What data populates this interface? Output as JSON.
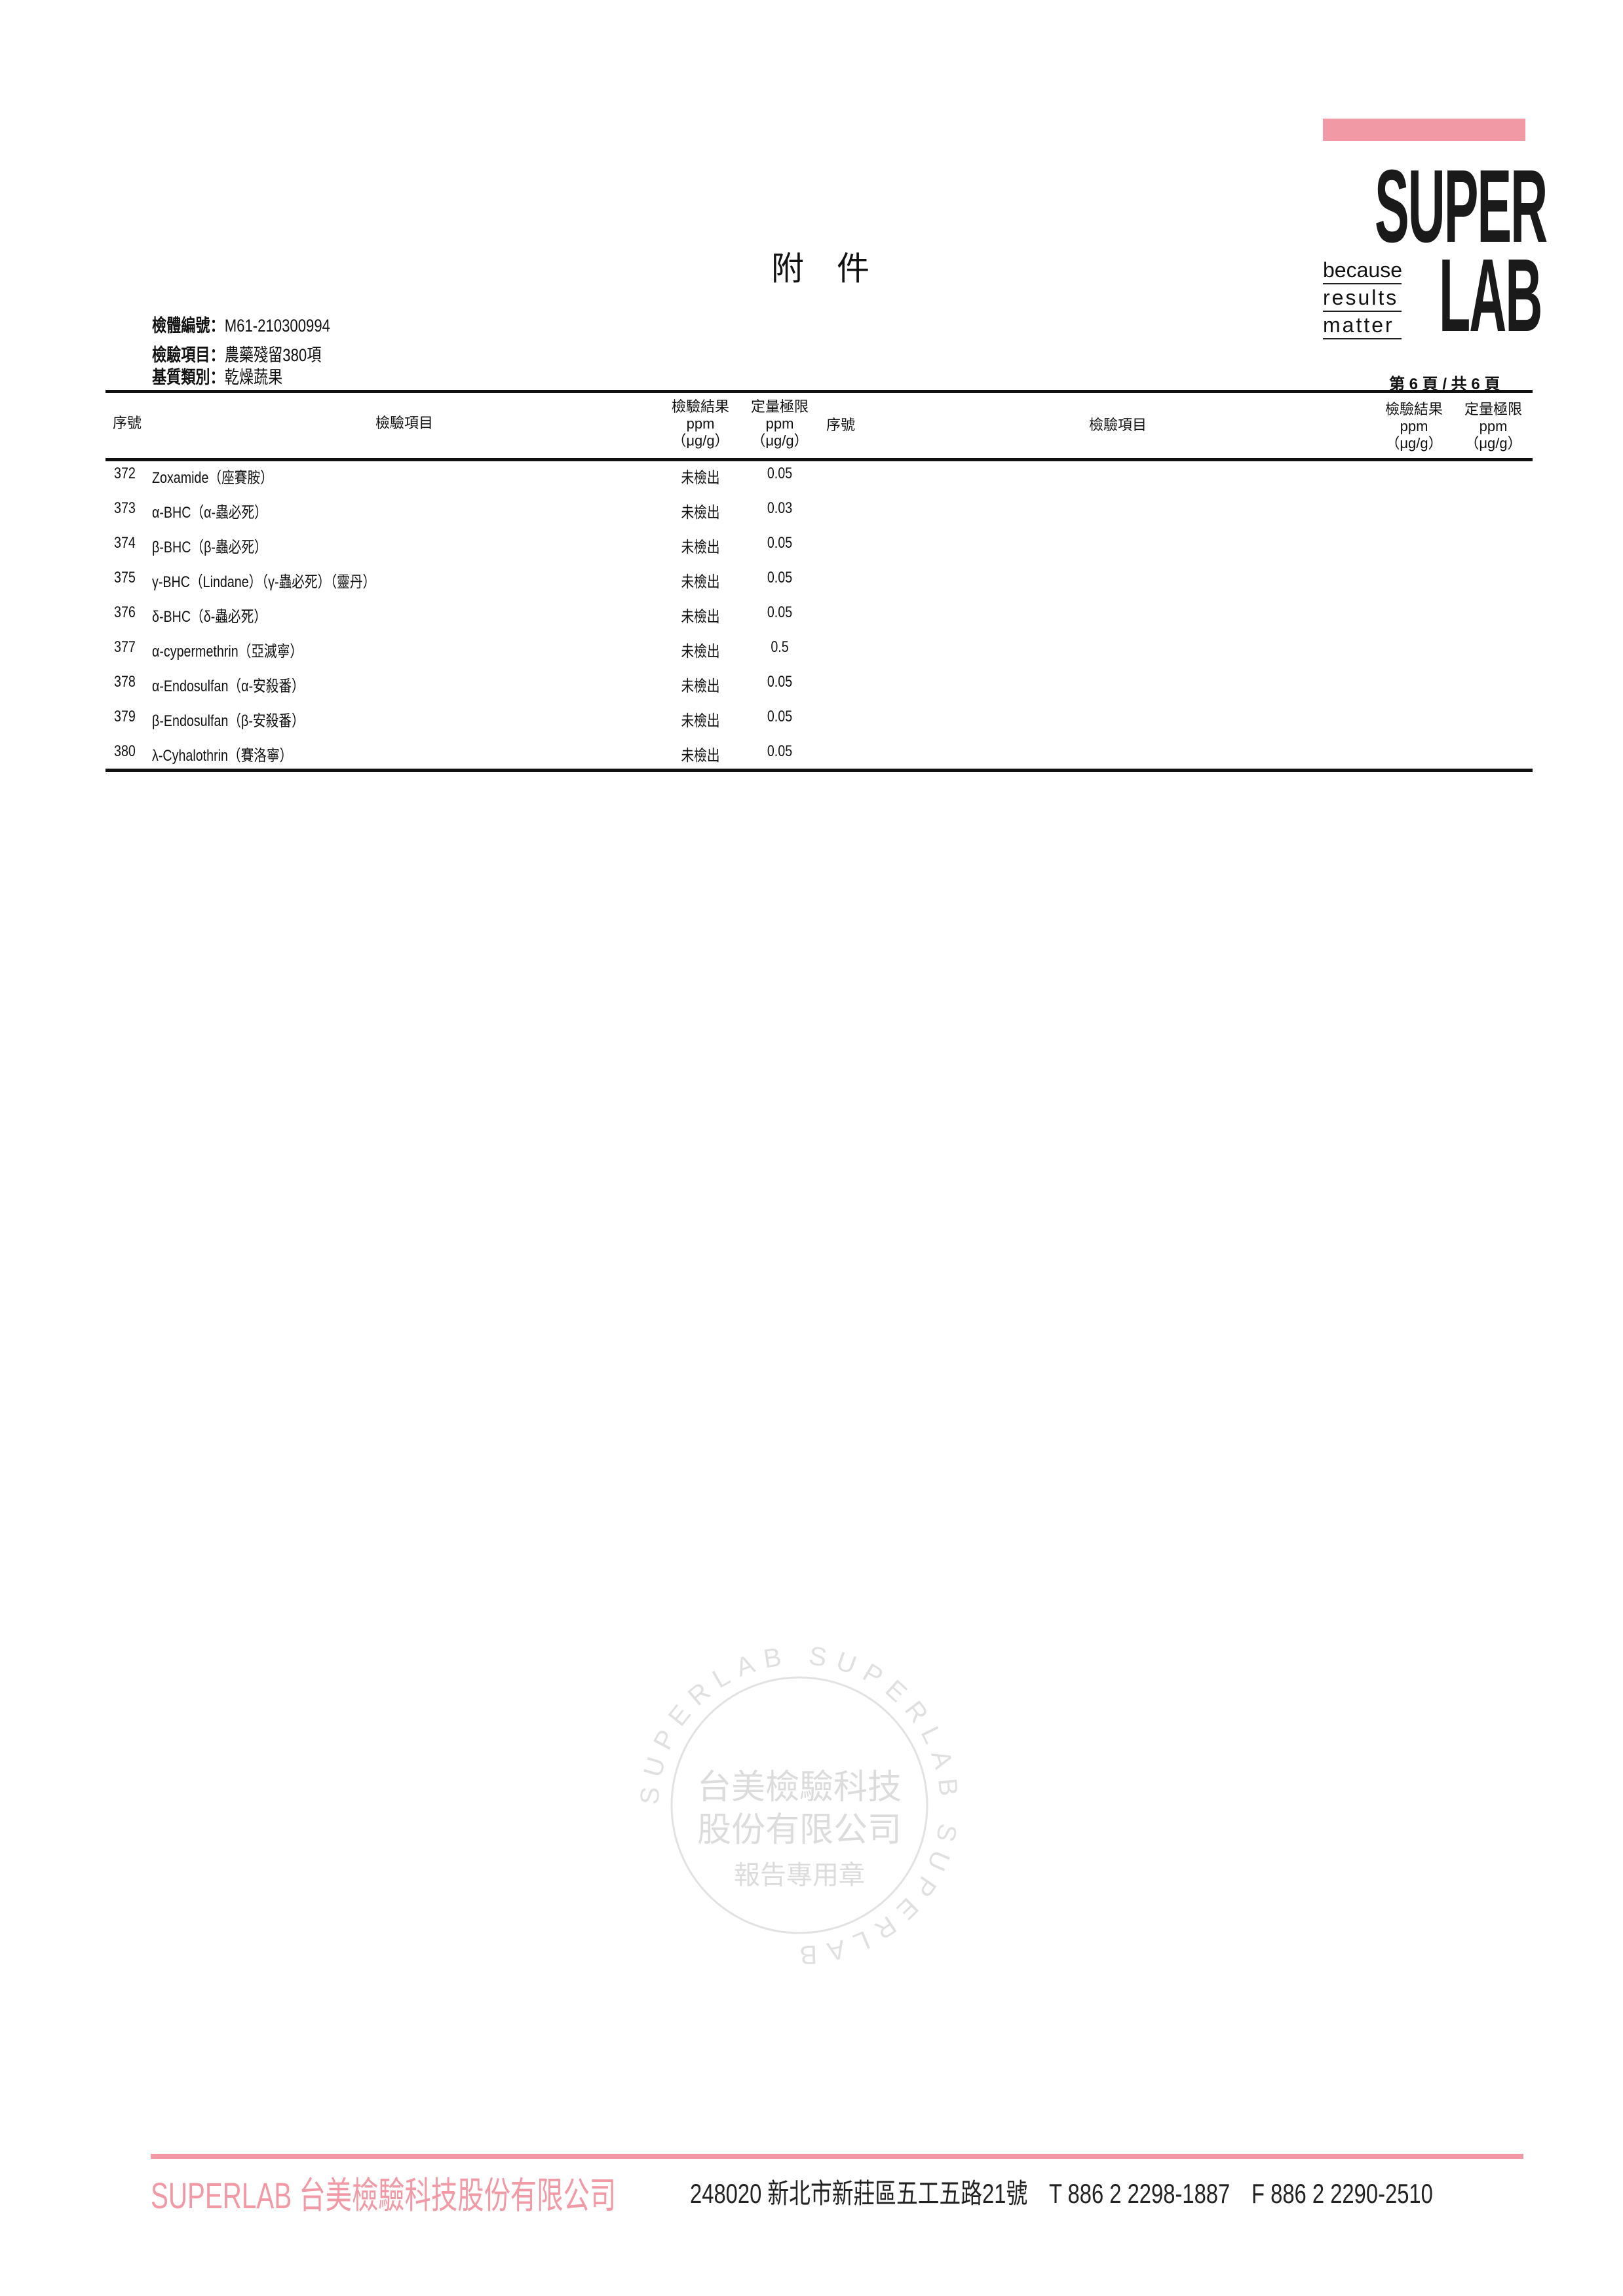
{
  "document": {
    "title": "附　件",
    "page_indicator": "第 6 頁 / 共 6 頁"
  },
  "logo": {
    "word1": "SUPER",
    "word2": "LAB",
    "tagline": [
      "because",
      "results",
      "matter"
    ],
    "accent_color": "#f19aa6"
  },
  "info": [
    {
      "label": "檢體編號：",
      "value": "M61-210300994"
    },
    {
      "label": "檢驗項目：",
      "value": "農藥殘留380項"
    },
    {
      "label": "基質類別：",
      "value": "乾燥蔬果"
    }
  ],
  "table": {
    "headers": {
      "seq": "序號",
      "item": "檢驗項目",
      "result": "檢驗結果",
      "limit": "定量極限",
      "unit": "ppm",
      "unit2": "（μg/g）"
    },
    "rows": [
      {
        "seq": "372",
        "item": "Zoxamide（座賽胺）",
        "result": "未檢出",
        "limit": "0.05"
      },
      {
        "seq": "373",
        "item": "α-BHC（α-蟲必死）",
        "result": "未檢出",
        "limit": "0.03"
      },
      {
        "seq": "374",
        "item": "β-BHC（β-蟲必死）",
        "result": "未檢出",
        "limit": "0.05"
      },
      {
        "seq": "375",
        "item": "γ-BHC（Lindane）（γ-蟲必死）（靈丹）",
        "result": "未檢出",
        "limit": "0.05"
      },
      {
        "seq": "376",
        "item": "δ-BHC（δ-蟲必死）",
        "result": "未檢出",
        "limit": "0.05"
      },
      {
        "seq": "377",
        "item": "α-cypermethrin（亞滅寧）",
        "result": "未檢出",
        "limit": "0.5"
      },
      {
        "seq": "378",
        "item": "α-Endosulfan（α-安殺番）",
        "result": "未檢出",
        "limit": "0.05"
      },
      {
        "seq": "379",
        "item": "β-Endosulfan（β-安殺番）",
        "result": "未檢出",
        "limit": "0.05"
      },
      {
        "seq": "380",
        "item": "λ-Cyhalothrin（賽洛寧）",
        "result": "未檢出",
        "limit": "0.05"
      }
    ]
  },
  "seal": {
    "center_lines": [
      "台美檢驗科技",
      "股份有限公司",
      "報告專用章"
    ],
    "ring_text": "SUPERLAB SUPERLAB SUPERLAB"
  },
  "footer": {
    "brand": "SUPERLAB 台美檢驗科技股份有限公司",
    "address": "248020 新北市新莊區五工五路21號　T 886 2 2298-1887　F 886 2 2290-2510",
    "brand_color": "#f19aa6"
  }
}
